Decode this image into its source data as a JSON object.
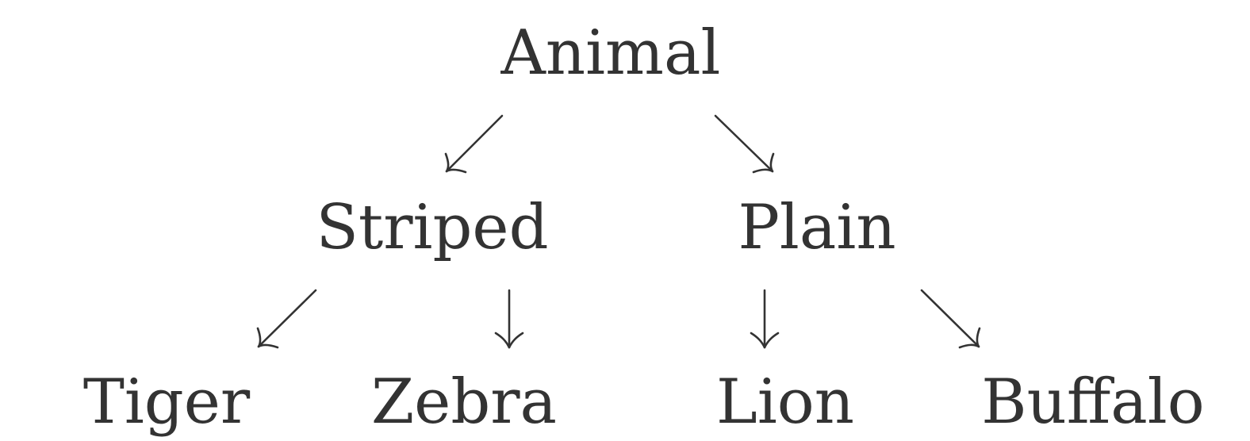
{
  "diagram": {
    "nodes": {
      "animal": "Animal",
      "striped": "Striped",
      "plain": "Plain",
      "tiger": "Tiger",
      "zebra": "Zebra",
      "lion": "Lion",
      "buffalo": "Buffalo"
    },
    "edges": [
      {
        "from": "animal",
        "to": "striped"
      },
      {
        "from": "animal",
        "to": "plain"
      },
      {
        "from": "striped",
        "to": "tiger"
      },
      {
        "from": "striped",
        "to": "zebra"
      },
      {
        "from": "plain",
        "to": "lion"
      },
      {
        "from": "plain",
        "to": "buffalo"
      }
    ],
    "colors": {
      "text": "#333333",
      "arrow": "#333333",
      "background": "#ffffff"
    }
  }
}
